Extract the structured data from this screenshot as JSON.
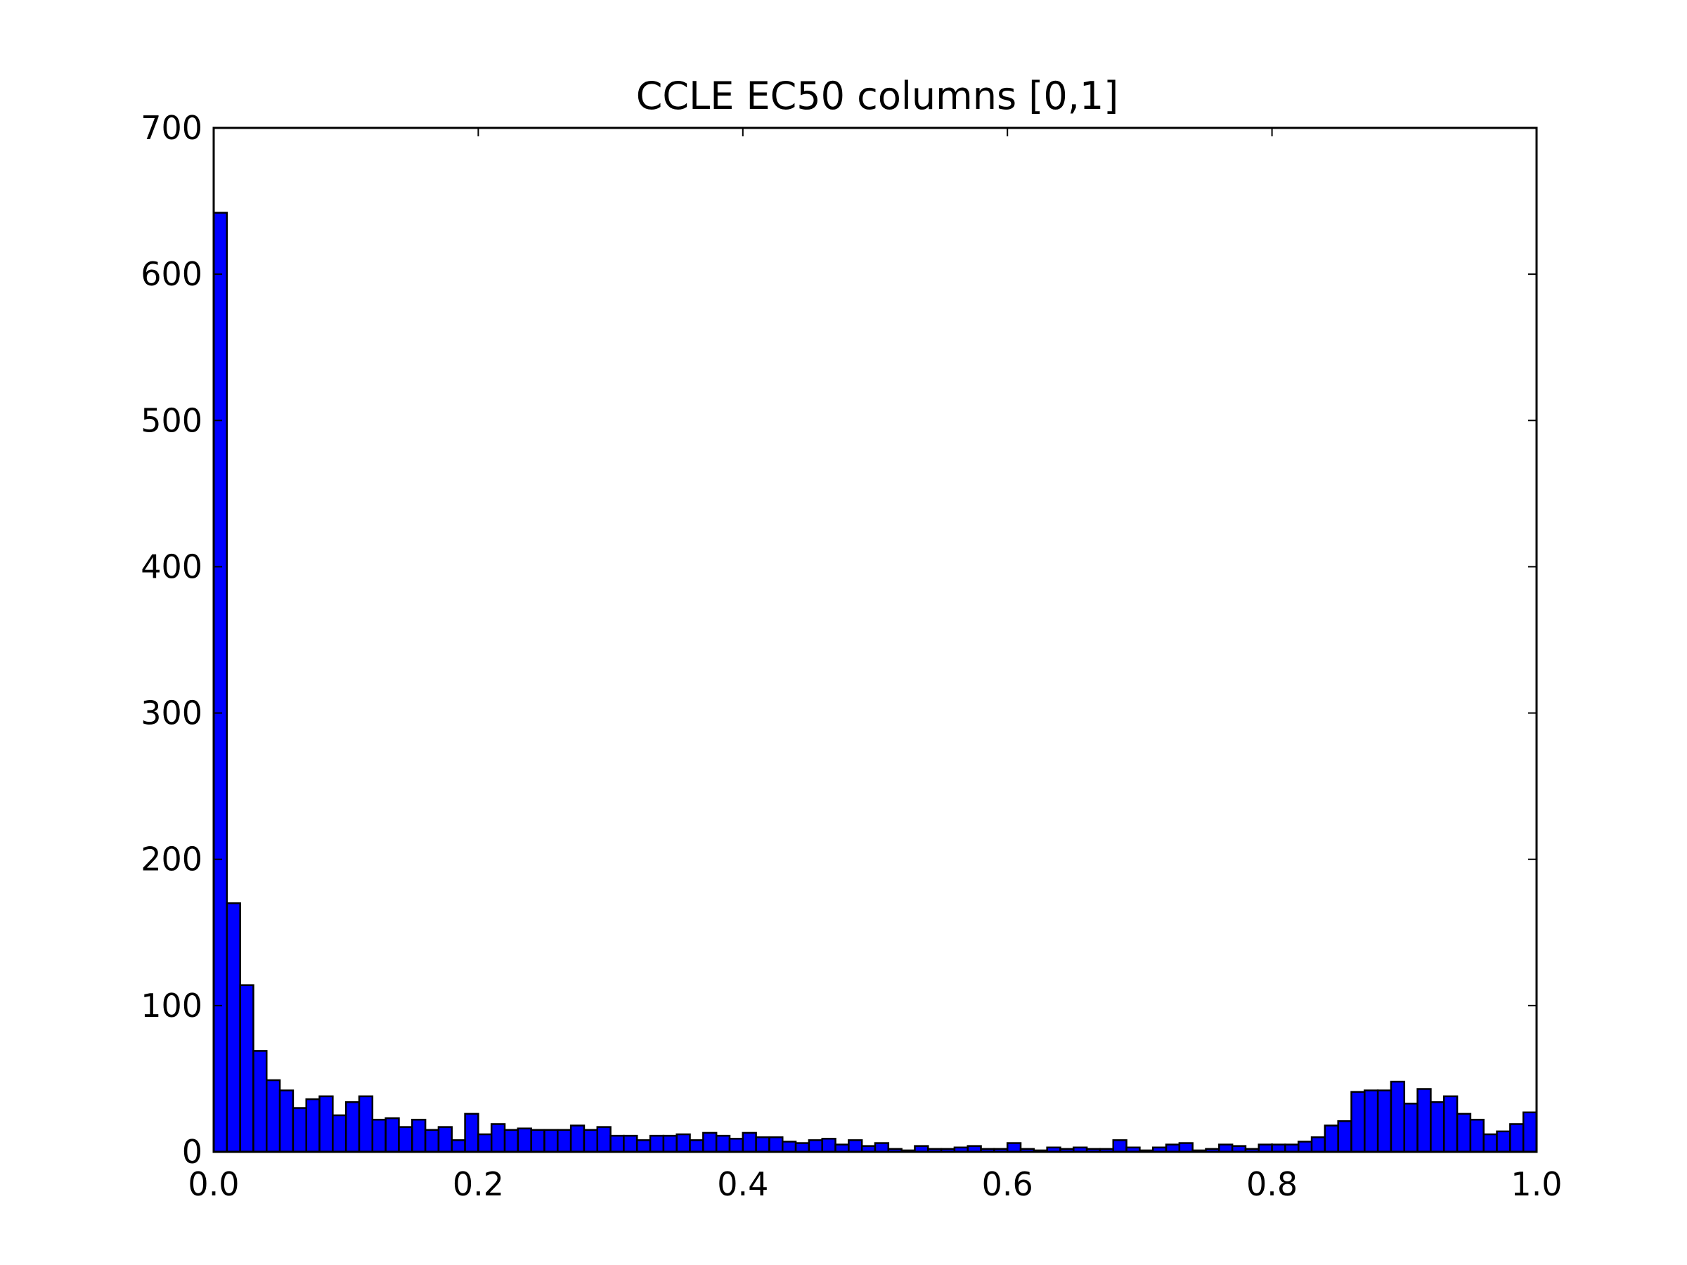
{
  "chart_data": {
    "type": "bar",
    "title": "CCLE EC50 columns [0,1]",
    "xlabel": "",
    "ylabel": "",
    "xlim": [
      0.0,
      1.0
    ],
    "ylim": [
      0,
      700
    ],
    "bin_width": 0.01,
    "grid": false,
    "legend": "none",
    "bar_color": "#0000ff",
    "edge_color": "#000000",
    "x_tick_labels": [
      "0.0",
      "0.2",
      "0.4",
      "0.6",
      "0.8",
      "1.0"
    ],
    "y_tick_labels": [
      "0",
      "100",
      "200",
      "300",
      "400",
      "500",
      "600",
      "700"
    ],
    "x_ticks": [
      0.0,
      0.2,
      0.4,
      0.6,
      0.8,
      1.0
    ],
    "y_ticks": [
      0,
      100,
      200,
      300,
      400,
      500,
      600,
      700
    ],
    "values": [
      642,
      170,
      114,
      69,
      49,
      42,
      30,
      36,
      38,
      25,
      34,
      38,
      22,
      23,
      17,
      22,
      15,
      17,
      8,
      26,
      12,
      19,
      15,
      16,
      15,
      15,
      15,
      18,
      15,
      17,
      11,
      11,
      8,
      11,
      11,
      12,
      8,
      13,
      11,
      9,
      13,
      10,
      10,
      7,
      6,
      8,
      9,
      5,
      8,
      4,
      6,
      2,
      1,
      4,
      2,
      2,
      3,
      4,
      2,
      2,
      6,
      2,
      1,
      3,
      2,
      3,
      2,
      2,
      8,
      3,
      1,
      3,
      5,
      6,
      1,
      2,
      5,
      4,
      2,
      5,
      5,
      5,
      7,
      10,
      18,
      21,
      41,
      42,
      42,
      48,
      33,
      43,
      34,
      38,
      26,
      22,
      12,
      14,
      19,
      27
    ]
  }
}
